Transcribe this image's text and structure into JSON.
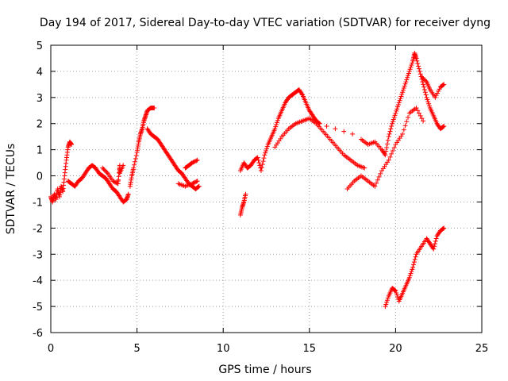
{
  "chart_data": {
    "type": "scatter",
    "title": "Day 194 of 2017, Sidereal Day-to-day VTEC variation (SDTVAR) for receiver dyng",
    "xlabel": "GPS time / hours",
    "ylabel": "SDTVAR / TECUs",
    "xlim": [
      0,
      25
    ],
    "ylim": [
      -6,
      5
    ],
    "xticks": [
      "0",
      "5",
      "10",
      "15",
      "20",
      "25"
    ],
    "yticks": [
      "-6",
      "-5",
      "-4",
      "-3",
      "-2",
      "-1",
      "0",
      "1",
      "2",
      "3",
      "4",
      "5"
    ],
    "grid": true,
    "marker": "+",
    "color": "#ff0000",
    "points": [
      [
        0.0,
        -0.8
      ],
      [
        0.1,
        -1.0
      ],
      [
        0.2,
        -0.7
      ],
      [
        0.3,
        -0.9
      ],
      [
        0.4,
        -0.5
      ],
      [
        0.5,
        -0.8
      ],
      [
        0.6,
        -0.4
      ],
      [
        0.7,
        -0.6
      ],
      [
        0.8,
        0.0
      ],
      [
        0.9,
        0.6
      ],
      [
        1.0,
        1.1
      ],
      [
        1.1,
        1.3
      ],
      [
        1.2,
        1.2
      ],
      [
        1.0,
        -0.2
      ],
      [
        1.2,
        -0.3
      ],
      [
        1.4,
        -0.4
      ],
      [
        1.6,
        -0.2
      ],
      [
        1.8,
        -0.1
      ],
      [
        2.0,
        0.1
      ],
      [
        2.2,
        0.3
      ],
      [
        2.4,
        0.4
      ],
      [
        2.6,
        0.3
      ],
      [
        2.8,
        0.1
      ],
      [
        3.0,
        0.0
      ],
      [
        3.2,
        -0.1
      ],
      [
        3.4,
        -0.3
      ],
      [
        3.6,
        -0.5
      ],
      [
        3.8,
        -0.6
      ],
      [
        4.0,
        -0.8
      ],
      [
        4.2,
        -1.0
      ],
      [
        4.4,
        -0.9
      ],
      [
        4.5,
        -0.7
      ],
      [
        3.0,
        0.3
      ],
      [
        3.3,
        0.1
      ],
      [
        3.6,
        -0.2
      ],
      [
        3.9,
        -0.3
      ],
      [
        4.0,
        0.4
      ],
      [
        4.0,
        0.1
      ],
      [
        4.2,
        0.4
      ],
      [
        3.9,
        -0.2
      ],
      [
        4.6,
        -0.4
      ],
      [
        4.7,
        0.0
      ],
      [
        4.8,
        0.3
      ],
      [
        5.0,
        0.9
      ],
      [
        5.1,
        1.3
      ],
      [
        5.2,
        1.6
      ],
      [
        5.3,
        1.8
      ],
      [
        5.4,
        2.1
      ],
      [
        5.5,
        2.3
      ],
      [
        5.6,
        2.5
      ],
      [
        5.8,
        2.6
      ],
      [
        6.0,
        2.6
      ],
      [
        5.6,
        1.8
      ],
      [
        5.8,
        1.6
      ],
      [
        6.0,
        1.5
      ],
      [
        6.2,
        1.4
      ],
      [
        6.4,
        1.2
      ],
      [
        6.6,
        1.0
      ],
      [
        6.8,
        0.8
      ],
      [
        7.0,
        0.6
      ],
      [
        7.2,
        0.4
      ],
      [
        7.4,
        0.2
      ],
      [
        7.6,
        0.1
      ],
      [
        7.8,
        -0.1
      ],
      [
        8.0,
        -0.3
      ],
      [
        8.2,
        -0.4
      ],
      [
        8.4,
        -0.5
      ],
      [
        8.6,
        -0.4
      ],
      [
        7.4,
        -0.3
      ],
      [
        7.8,
        -0.4
      ],
      [
        8.2,
        -0.3
      ],
      [
        8.5,
        -0.2
      ],
      [
        7.8,
        0.3
      ],
      [
        8.0,
        0.4
      ],
      [
        8.2,
        0.5
      ],
      [
        8.5,
        0.6
      ],
      [
        11.0,
        -1.5
      ],
      [
        11.1,
        -1.2
      ],
      [
        11.2,
        -1.0
      ],
      [
        11.3,
        -0.7
      ],
      [
        11.0,
        0.2
      ],
      [
        11.2,
        0.5
      ],
      [
        11.4,
        0.3
      ],
      [
        11.6,
        0.4
      ],
      [
        11.8,
        0.6
      ],
      [
        12.0,
        0.7
      ],
      [
        12.2,
        0.2
      ],
      [
        12.4,
        0.8
      ],
      [
        12.6,
        1.2
      ],
      [
        12.8,
        1.5
      ],
      [
        13.0,
        1.8
      ],
      [
        13.2,
        2.2
      ],
      [
        13.4,
        2.5
      ],
      [
        13.6,
        2.8
      ],
      [
        13.8,
        3.0
      ],
      [
        14.0,
        3.1
      ],
      [
        14.2,
        3.2
      ],
      [
        14.4,
        3.3
      ],
      [
        14.6,
        3.1
      ],
      [
        14.8,
        2.8
      ],
      [
        15.0,
        2.5
      ],
      [
        15.2,
        2.3
      ],
      [
        15.4,
        2.1
      ],
      [
        15.6,
        2.0
      ],
      [
        13.0,
        1.1
      ],
      [
        13.4,
        1.5
      ],
      [
        13.8,
        1.8
      ],
      [
        14.2,
        2.0
      ],
      [
        14.6,
        2.1
      ],
      [
        15.0,
        2.2
      ],
      [
        15.4,
        2.0
      ],
      [
        15.8,
        1.7
      ],
      [
        16.2,
        1.4
      ],
      [
        16.6,
        1.1
      ],
      [
        17.0,
        0.8
      ],
      [
        17.4,
        0.6
      ],
      [
        17.8,
        0.4
      ],
      [
        18.2,
        0.3
      ],
      [
        16.0,
        1.9
      ],
      [
        16.5,
        1.8
      ],
      [
        17.0,
        1.7
      ],
      [
        17.5,
        1.6
      ],
      [
        18.0,
        1.4
      ],
      [
        18.4,
        1.2
      ],
      [
        18.8,
        1.3
      ],
      [
        19.2,
        1.0
      ],
      [
        19.4,
        0.8
      ],
      [
        19.6,
        1.5
      ],
      [
        19.8,
        2.0
      ],
      [
        20.0,
        2.4
      ],
      [
        20.2,
        2.8
      ],
      [
        20.4,
        3.2
      ],
      [
        20.6,
        3.6
      ],
      [
        20.8,
        4.0
      ],
      [
        21.0,
        4.4
      ],
      [
        21.1,
        4.7
      ],
      [
        21.2,
        4.5
      ],
      [
        21.4,
        4.0
      ],
      [
        21.6,
        3.5
      ],
      [
        21.8,
        3.0
      ],
      [
        22.0,
        2.6
      ],
      [
        22.2,
        2.3
      ],
      [
        22.4,
        2.0
      ],
      [
        22.6,
        1.8
      ],
      [
        22.8,
        1.9
      ],
      [
        21.5,
        3.8
      ],
      [
        21.8,
        3.6
      ],
      [
        22.0,
        3.3
      ],
      [
        22.3,
        3.0
      ],
      [
        22.6,
        3.4
      ],
      [
        22.8,
        3.5
      ],
      [
        17.2,
        -0.5
      ],
      [
        17.6,
        -0.2
      ],
      [
        18.0,
        0.0
      ],
      [
        18.4,
        -0.2
      ],
      [
        18.8,
        -0.4
      ],
      [
        19.2,
        0.2
      ],
      [
        19.6,
        0.6
      ],
      [
        20.0,
        1.2
      ],
      [
        20.4,
        1.6
      ],
      [
        20.8,
        2.4
      ],
      [
        21.2,
        2.6
      ],
      [
        21.6,
        2.1
      ],
      [
        19.4,
        -5.0
      ],
      [
        19.6,
        -4.6
      ],
      [
        19.8,
        -4.3
      ],
      [
        20.0,
        -4.4
      ],
      [
        20.2,
        -4.8
      ],
      [
        20.4,
        -4.5
      ],
      [
        20.6,
        -4.2
      ],
      [
        20.8,
        -3.9
      ],
      [
        21.0,
        -3.5
      ],
      [
        21.2,
        -3.0
      ],
      [
        21.5,
        -2.7
      ],
      [
        21.8,
        -2.4
      ],
      [
        22.0,
        -2.6
      ],
      [
        22.2,
        -2.8
      ],
      [
        22.4,
        -2.3
      ],
      [
        22.6,
        -2.1
      ],
      [
        22.8,
        -2.0
      ]
    ]
  }
}
